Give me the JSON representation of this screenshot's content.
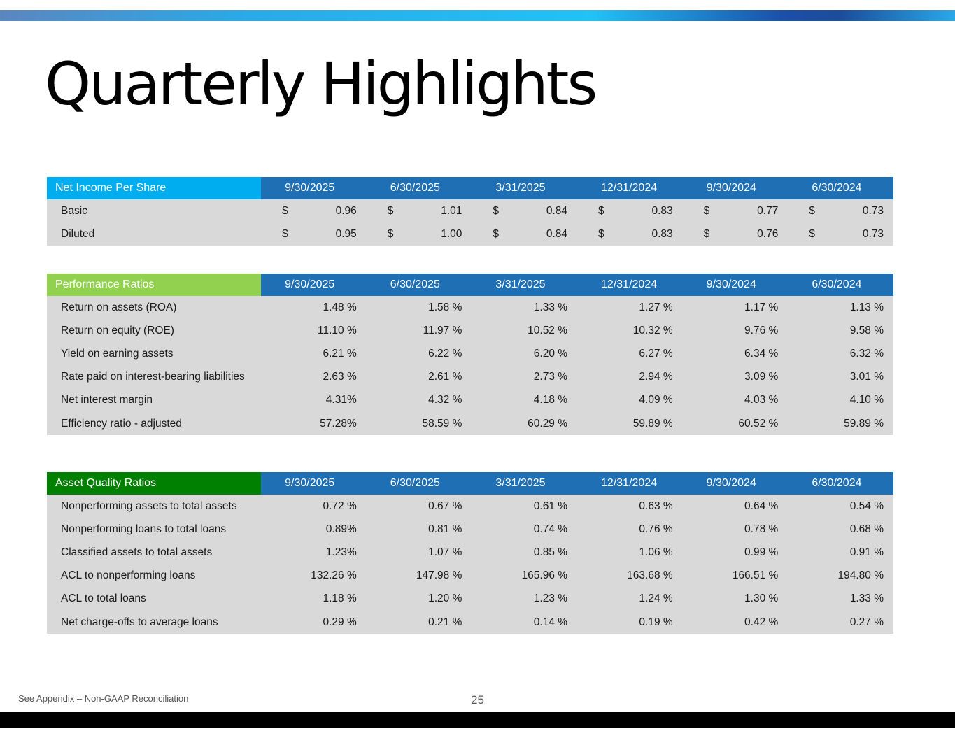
{
  "page": {
    "title": "Quarterly Highlights",
    "footer_note": "See Appendix – Non-GAAP Reconciliation",
    "page_number": "25"
  },
  "colors": {
    "accent_blue": "#1f6fb5",
    "net_income_header": "#00aeef",
    "performance_header": "#92d050",
    "asset_quality_header": "#008000",
    "row_bg": "#d9d9d9"
  },
  "quarters": [
    "9/30/2025",
    "6/30/2025",
    "3/31/2025",
    "12/31/2024",
    "9/30/2024",
    "6/30/2024"
  ],
  "tables": [
    {
      "title": "Net Income Per Share",
      "header_color": "#00aeef",
      "currency_symbol": "$",
      "rows": [
        {
          "label": "Basic",
          "values": [
            "0.96",
            "1.01",
            "0.84",
            "0.83",
            "0.77",
            "0.73"
          ]
        },
        {
          "label": "Diluted",
          "values": [
            "0.95",
            "1.00",
            "0.84",
            "0.83",
            "0.76",
            "0.73"
          ]
        }
      ]
    },
    {
      "title": "Performance Ratios",
      "header_color": "#92d050",
      "rows": [
        {
          "label": "Return on assets (ROA)",
          "values": [
            "1.48 %",
            "1.58 %",
            "1.33 %",
            "1.27 %",
            "1.17 %",
            "1.13 %"
          ]
        },
        {
          "label": "Return on equity (ROE)",
          "values": [
            "11.10 %",
            "11.97 %",
            "10.52 %",
            "10.32 %",
            "9.76 %",
            "9.58 %"
          ]
        },
        {
          "label": "Yield on earning assets",
          "values": [
            "6.21 %",
            "6.22 %",
            "6.20 %",
            "6.27 %",
            "6.34 %",
            "6.32 %"
          ]
        },
        {
          "label": "Rate paid on interest-bearing liabilities",
          "values": [
            "2.63 %",
            "2.61 %",
            "2.73 %",
            "2.94 %",
            "3.09 %",
            "3.01 %"
          ]
        },
        {
          "label": "Net interest margin",
          "values": [
            "4.31%",
            "4.32 %",
            "4.18 %",
            "4.09 %",
            "4.03 %",
            "4.10 %"
          ]
        },
        {
          "label": "Efficiency ratio - adjusted",
          "values": [
            "57.28%",
            "58.59 %",
            "60.29 %",
            "59.89 %",
            "60.52 %",
            "59.89 %"
          ]
        }
      ]
    },
    {
      "title": "Asset Quality Ratios",
      "header_color": "#008000",
      "rows": [
        {
          "label": "Nonperforming assets to total assets",
          "values": [
            "0.72 %",
            "0.67 %",
            "0.61 %",
            "0.63 %",
            "0.64 %",
            "0.54 %"
          ]
        },
        {
          "label": "Nonperforming loans to total loans",
          "values": [
            "0.89%",
            "0.81 %",
            "0.74 %",
            "0.76 %",
            "0.78 %",
            "0.68 %"
          ]
        },
        {
          "label": "Classified assets to total assets",
          "values": [
            "1.23%",
            "1.07 %",
            "0.85 %",
            "1.06 %",
            "0.99 %",
            "0.91 %"
          ]
        },
        {
          "label": "ACL to nonperforming loans",
          "values": [
            "132.26 %",
            "147.98 %",
            "165.96 %",
            "163.68 %",
            "166.51 %",
            "194.80 %"
          ]
        },
        {
          "label": "ACL to total loans",
          "values": [
            "1.18 %",
            "1.20 %",
            "1.23 %",
            "1.24 %",
            "1.30 %",
            "1.33 %"
          ]
        },
        {
          "label": "Net charge-offs to average loans",
          "values": [
            "0.29 %",
            "0.21 %",
            "0.14 %",
            "0.19 %",
            "0.42 %",
            "0.27 %"
          ]
        }
      ]
    }
  ]
}
